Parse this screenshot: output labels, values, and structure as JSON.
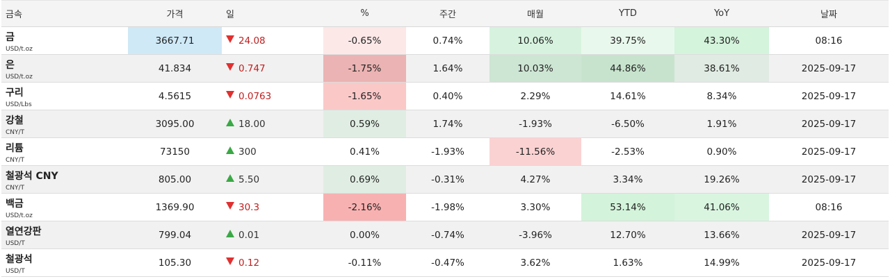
{
  "headers": [
    "금속",
    "가격",
    "일",
    "%",
    "주간",
    "매월",
    "YTD",
    "YoY",
    "날짜"
  ],
  "rows": [
    {
      "name": "금",
      "unit": "USD/t.oz",
      "price": "3667.71",
      "dir": "down",
      "day": "24.08",
      "pct": "-0.65%",
      "weekly": "0.74%",
      "monthly": "10.06%",
      "ytd": "39.75%",
      "yoy": "43.30%",
      "date": "08:16"
    },
    {
      "name": "은",
      "unit": "USD/t.oz",
      "price": "41.834",
      "dir": "down",
      "day": "0.747",
      "pct": "-1.75%",
      "weekly": "1.64%",
      "monthly": "10.03%",
      "ytd": "44.86%",
      "yoy": "38.61%",
      "date": "2025-09-17"
    },
    {
      "name": "구리",
      "unit": "USD/Lbs",
      "price": "4.5615",
      "dir": "down",
      "day": "0.0763",
      "pct": "-1.65%",
      "weekly": "0.40%",
      "monthly": "2.29%",
      "ytd": "14.61%",
      "yoy": "8.34%",
      "date": "2025-09-17"
    },
    {
      "name": "강철",
      "unit": "CNY/T",
      "price": "3095.00",
      "dir": "up",
      "day": "18.00",
      "pct": "0.59%",
      "weekly": "1.74%",
      "monthly": "-1.93%",
      "ytd": "-6.50%",
      "yoy": "1.91%",
      "date": "2025-09-17"
    },
    {
      "name": "리튬",
      "unit": "CNY/T",
      "price": "73150",
      "dir": "up",
      "day": "300",
      "pct": "0.41%",
      "weekly": "-1.93%",
      "monthly": "-11.56%",
      "ytd": "-2.53%",
      "yoy": "0.90%",
      "date": "2025-09-17"
    },
    {
      "name": "철광석 CNY",
      "unit": "CNY/T",
      "price": "805.00",
      "dir": "up",
      "day": "5.50",
      "pct": "0.69%",
      "weekly": "-0.31%",
      "monthly": "4.27%",
      "ytd": "3.34%",
      "yoy": "19.26%",
      "date": "2025-09-17"
    },
    {
      "name": "백금",
      "unit": "USD/t.oz",
      "price": "1369.90",
      "dir": "down",
      "day": "30.3",
      "pct": "-2.16%",
      "weekly": "-1.98%",
      "monthly": "3.30%",
      "ytd": "53.14%",
      "yoy": "41.06%",
      "date": "08:16"
    },
    {
      "name": "열연강판",
      "unit": "USD/T",
      "price": "799.04",
      "dir": "up",
      "day": "0.01",
      "pct": "0.00%",
      "weekly": "-0.74%",
      "monthly": "-3.96%",
      "ytd": "12.70%",
      "yoy": "13.66%",
      "date": "2025-09-17"
    },
    {
      "name": "철광석",
      "unit": "USD/T",
      "price": "105.30",
      "dir": "down",
      "day": "0.12",
      "pct": "-0.11%",
      "weekly": "-0.47%",
      "monthly": "3.62%",
      "ytd": "1.63%",
      "yoy": "14.99%",
      "date": "2025-09-17"
    }
  ],
  "cell_colors": {
    "0": {
      "price": "#cfe9f7",
      "pct": "#fde8e8",
      "monthly": "#d7f3df",
      "ytd": "#e9f8ec",
      "yoy": "#d4f4dc"
    },
    "1": {
      "pct": "#ebb3b3",
      "monthly": "#cde5d3",
      "ytd": "#c7e3cd",
      "yoy": "#e0ebe3"
    },
    "2": {
      "pct": "#fbc8c8"
    },
    "3": {
      "pct": "#e0ede3"
    },
    "4": {
      "monthly": "#fbd2d2"
    },
    "5": {
      "pct": "#e0ede3"
    },
    "6": {
      "pct": "#f8b1b1",
      "ytd": "#d3f3da",
      "yoy": "#d9f5e0"
    }
  }
}
